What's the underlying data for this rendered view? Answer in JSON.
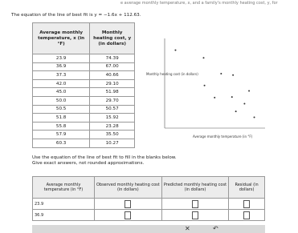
{
  "header": {
    "intro": "e average monthly temperature, x, and a family's monthly heating cost, y, for",
    "equation": "The equation of the line of best fit is y = −1.6x + 112.63."
  },
  "data_table": {
    "headers": [
      "Average monthly temperature, x (in °F)",
      "Monthly heating cost, y (in dollars)"
    ],
    "rows": [
      [
        "23.9",
        "74.39"
      ],
      [
        "36.9",
        "67.00"
      ],
      [
        "37.3",
        "40.66"
      ],
      [
        "42.0",
        "29.10"
      ],
      [
        "45.0",
        "51.98"
      ],
      [
        "50.0",
        "29.70"
      ],
      [
        "50.5",
        "50.57"
      ],
      [
        "51.8",
        "15.92"
      ],
      [
        "55.8",
        "23.28"
      ],
      [
        "57.9",
        "35.50"
      ],
      [
        "60.3",
        "10.27"
      ]
    ]
  },
  "plot": {
    "y_label": "Monthly heating cost (in dollars)",
    "x_label": "Average monthly temperature (in °F)"
  },
  "instructions": [
    "Use the equation of the line of best fit to fill in the blanks below.",
    "Give exact answers, not rounded approximations."
  ],
  "answer_table": {
    "headers": [
      "Average monthly temperature (in °F)",
      "Observed monthly heating cost (in dollars)",
      "Predicted monthly heating cost (in dollars)",
      "Residual (in dollars)"
    ],
    "rows": [
      [
        "23.9"
      ],
      [
        "36.9"
      ]
    ]
  }
}
